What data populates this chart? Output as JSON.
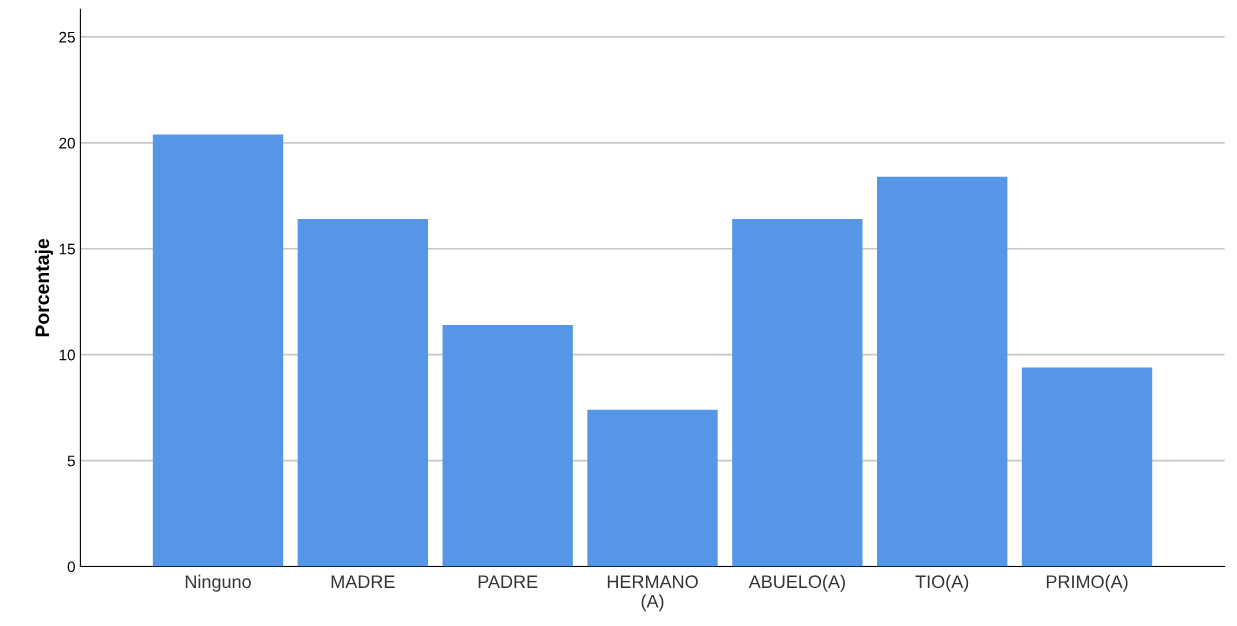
{
  "chart_data": {
    "type": "bar",
    "ylabel": "Porcentaje",
    "categories": [
      "Ninguno",
      "MADRE",
      "PADRE",
      "HERMANO\n(A)",
      "ABUELO(A)",
      "TIO(A)",
      "PRIMO(A)"
    ],
    "values": [
      20.4,
      16.4,
      11.4,
      7.4,
      16.4,
      18.4,
      9.4
    ],
    "color": "#5596e6",
    "ylim": [
      0,
      26.3
    ],
    "yticks": [
      0,
      5,
      10,
      15,
      20,
      25
    ],
    "grid": "y"
  }
}
